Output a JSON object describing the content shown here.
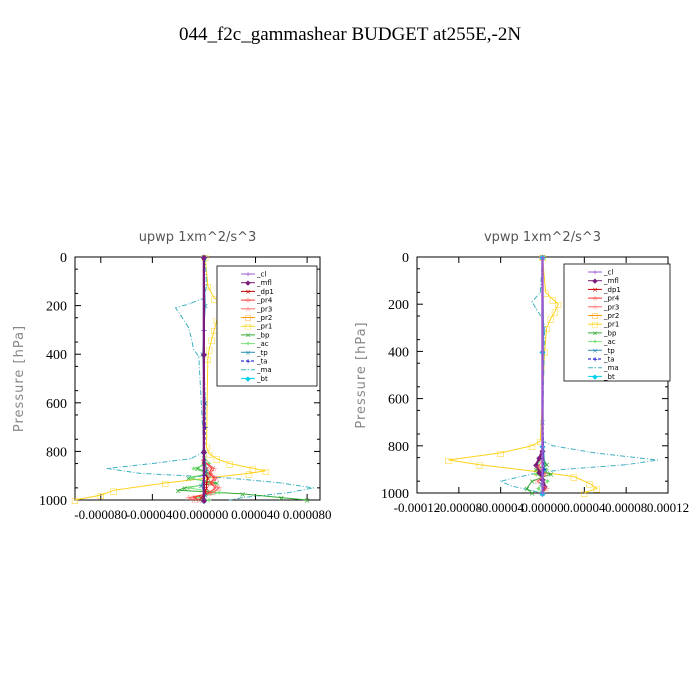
{
  "title": "044_f2c_gammashear  BUDGET at255E,-2N",
  "legend_labels": [
    "_cl",
    "_mfl",
    "_dp1",
    "_pr4",
    "_pr3",
    "_pr2",
    "_pr1",
    "_bp",
    "_ac",
    "_tp",
    "_ta",
    "_ma",
    "_bt"
  ],
  "colors": {
    "_cl": "#9b59d0",
    "_mfl": "#7a1a7a",
    "_dp1": "#cc0000",
    "_pr4": "#ff3030",
    "_pr3": "#ff6666",
    "_pr2": "#ff9900",
    "_pr1": "#ffd21a",
    "_bp": "#33aa33",
    "_ac": "#7ae07a",
    "_tp": "#2a8fb0",
    "_ta": "#0000cc",
    "_ma": "#3fb0c0",
    "_bt": "#00d0f0"
  },
  "chart_data": [
    {
      "type": "line",
      "title": "upwp   1xm^2/s^3",
      "ylabel": "Pressure [hPa]",
      "xlabel": "",
      "xlim": [
        -0.0001,
        9e-05
      ],
      "ylim": [
        1000,
        0
      ],
      "xticks": [
        "-0.000080",
        "-0.000040",
        "0.000000",
        "0.000040",
        "0.000080"
      ],
      "xtick_values": [
        -8e-05,
        -4e-05,
        0,
        4e-05,
        8e-05
      ],
      "yticks": [
        "0",
        "200",
        "400",
        "600",
        "800",
        "1000"
      ],
      "ytick_values": [
        0,
        200,
        400,
        600,
        800,
        1000
      ],
      "legend": "top-right",
      "series": [
        {
          "name": "_pr1",
          "x": [
            1e-06,
            3e-06,
            8e-06,
            1.8e-05,
            1.7e-05,
            1e-05,
            8e-06,
            6e-06,
            4e-06,
            3e-06,
            2e-06,
            4e-06,
            1e-05,
            2e-05,
            3.8e-05,
            4.8e-05,
            3.5e-05,
            -3e-05,
            -7e-05,
            -8e-05,
            -0.0001
          ],
          "y": [
            0,
            120,
            170,
            190,
            220,
            260,
            300,
            340,
            380,
            420,
            780,
            810,
            830,
            850,
            870,
            880,
            890,
            930,
            960,
            980,
            1000
          ]
        },
        {
          "name": "_ma",
          "x": [
            1e-06,
            2e-06,
            0.0,
            -1e-05,
            -2.2e-05,
            -1.8e-05,
            -1.2e-05,
            -1e-05,
            -8e-06,
            -4e-06,
            0.0,
            -1e-05,
            -4e-05,
            -7.5e-05,
            -5e-05,
            2e-05,
            6e-05,
            8.5e-05,
            6.5e-05,
            3e-05,
            2e-05
          ],
          "y": [
            0,
            120,
            170,
            190,
            210,
            240,
            290,
            330,
            380,
            410,
            800,
            830,
            850,
            870,
            890,
            910,
            930,
            950,
            970,
            990,
            1000
          ]
        },
        {
          "name": "_bp",
          "x": [
            0,
            0,
            0,
            -5e-06,
            4e-06,
            -1.2e-05,
            1e-05,
            -1.5e-05,
            -2e-05,
            3e-05,
            6e-05,
            8e-05
          ],
          "y": [
            0,
            800,
            850,
            870,
            890,
            910,
            930,
            950,
            960,
            975,
            990,
            1000
          ]
        },
        {
          "name": "_ac",
          "x": [
            0,
            0,
            4e-06,
            -8e-06,
            3e-06,
            -1e-05,
            6e-06,
            -1.2e-05,
            1.2e-05,
            -6e-06,
            4e-06
          ],
          "y": [
            0,
            820,
            850,
            870,
            890,
            910,
            930,
            950,
            970,
            990,
            1000
          ]
        },
        {
          "name": "_pr3",
          "x": [
            0,
            0,
            8e-06,
            5e-06,
            1e-05,
            6e-06,
            1.2e-05,
            7e-06,
            -1.2e-05,
            -8e-06
          ],
          "y": [
            0,
            840,
            870,
            890,
            910,
            930,
            950,
            970,
            990,
            1000
          ]
        },
        {
          "name": "_pr4",
          "x": [
            0,
            0,
            6e-06,
            4e-06,
            8e-06,
            5e-06,
            9e-06,
            4e-06,
            -8e-06,
            -4e-06
          ],
          "y": [
            0,
            840,
            870,
            890,
            910,
            930,
            950,
            970,
            990,
            1000
          ]
        },
        {
          "name": "_dp1",
          "x": [
            0,
            0,
            2e-06,
            1e-06,
            3e-06,
            2e-06,
            2e-06,
            1e-06,
            -2e-06,
            0
          ],
          "y": [
            0,
            840,
            870,
            890,
            910,
            930,
            950,
            970,
            990,
            1000
          ]
        },
        {
          "name": "_tp",
          "x": [
            0,
            1e-06,
            -1e-06,
            1e-06,
            0,
            2e-06,
            -2e-06,
            1e-06,
            0
          ],
          "y": [
            0,
            200,
            400,
            600,
            800,
            880,
            940,
            980,
            1000
          ]
        },
        {
          "name": "_ta",
          "x": [
            0,
            0,
            1e-06,
            0,
            0
          ],
          "y": [
            0,
            300,
            700,
            900,
            1000
          ]
        },
        {
          "name": "_bt",
          "x": [
            0,
            0,
            0,
            0
          ],
          "y": [
            0,
            400,
            800,
            1000
          ]
        },
        {
          "name": "_cl",
          "x": [
            0,
            0,
            0,
            0
          ],
          "y": [
            0,
            400,
            800,
            1000
          ]
        },
        {
          "name": "_mfl",
          "x": [
            0,
            0,
            0,
            0
          ],
          "y": [
            0,
            400,
            800,
            1000
          ]
        }
      ]
    },
    {
      "type": "line",
      "title": "vpwp   1xm^2/s^3",
      "ylabel": "Pressure [hPa]",
      "xlabel": "",
      "xlim": [
        -0.00012,
        0.00012
      ],
      "ylim": [
        1000,
        0
      ],
      "xticks": [
        "-0.00012",
        "-0.00008",
        "-0.00004",
        "0.00000",
        "0.00004",
        "0.00008",
        "0.00012"
      ],
      "xtick_values": [
        -0.00012,
        -8e-05,
        -4e-05,
        0,
        4e-05,
        8e-05,
        0.00012
      ],
      "yticks": [
        "0",
        "200",
        "400",
        "600",
        "800",
        "1000"
      ],
      "ytick_values": [
        0,
        200,
        400,
        600,
        800,
        1000
      ],
      "legend": "top-right",
      "series": [
        {
          "name": "_pr1",
          "x": [
            0,
            3e-06,
            1e-05,
            1.5e-05,
            1.2e-05,
            8e-06,
            4e-06,
            2e-06,
            -2e-06,
            -1e-05,
            -4e-05,
            -9e-05,
            -6e-05,
            -5e-06,
            3e-05,
            4.5e-05,
            5.2e-05,
            4e-05
          ],
          "y": [
            0,
            150,
            180,
            200,
            230,
            260,
            300,
            400,
            780,
            800,
            830,
            860,
            880,
            910,
            930,
            960,
            980,
            1000
          ]
        },
        {
          "name": "_ma",
          "x": [
            0,
            -2e-06,
            -1e-05,
            -6e-06,
            0,
            2e-06,
            0,
            1e-05,
            5e-05,
            0.00011,
            8e-05,
            2e-05,
            -1e-05,
            -4e-05,
            -3e-05,
            -1e-05,
            0
          ],
          "y": [
            0,
            150,
            190,
            220,
            260,
            300,
            780,
            800,
            830,
            860,
            880,
            900,
            920,
            950,
            970,
            990,
            1000
          ]
        },
        {
          "name": "_bp",
          "x": [
            0,
            0,
            4e-06,
            -6e-06,
            8e-06,
            -1e-05,
            -1.5e-05,
            -1e-05
          ],
          "y": [
            0,
            850,
            880,
            900,
            920,
            950,
            980,
            1000
          ]
        },
        {
          "name": "_ac",
          "x": [
            0,
            0,
            -5e-06,
            4e-06,
            -6e-06,
            5e-06,
            -4e-06,
            0
          ],
          "y": [
            0,
            850,
            880,
            900,
            920,
            950,
            980,
            1000
          ]
        },
        {
          "name": "_mfl",
          "x": [
            0,
            0,
            -3e-06,
            -6e-06,
            -3e-06,
            0,
            2e-06,
            0
          ],
          "y": [
            0,
            820,
            850,
            880,
            910,
            940,
            970,
            1000
          ]
        },
        {
          "name": "_pr3",
          "x": [
            0,
            0,
            -4e-06,
            3e-06,
            -5e-06,
            4e-06,
            0
          ],
          "y": [
            0,
            860,
            890,
            920,
            950,
            980,
            1000
          ]
        },
        {
          "name": "_tp",
          "x": [
            0,
            1e-06,
            0,
            2e-06,
            -1e-06,
            0
          ],
          "y": [
            0,
            300,
            700,
            900,
            960,
            1000
          ]
        },
        {
          "name": "_ta",
          "x": [
            0,
            0,
            1e-06,
            0
          ],
          "y": [
            0,
            400,
            900,
            1000
          ]
        },
        {
          "name": "_bt",
          "x": [
            0,
            0,
            0,
            0
          ],
          "y": [
            0,
            400,
            800,
            1000
          ]
        },
        {
          "name": "_cl",
          "x": [
            0,
            0,
            0,
            0
          ],
          "y": [
            0,
            400,
            800,
            1000
          ]
        }
      ]
    }
  ]
}
